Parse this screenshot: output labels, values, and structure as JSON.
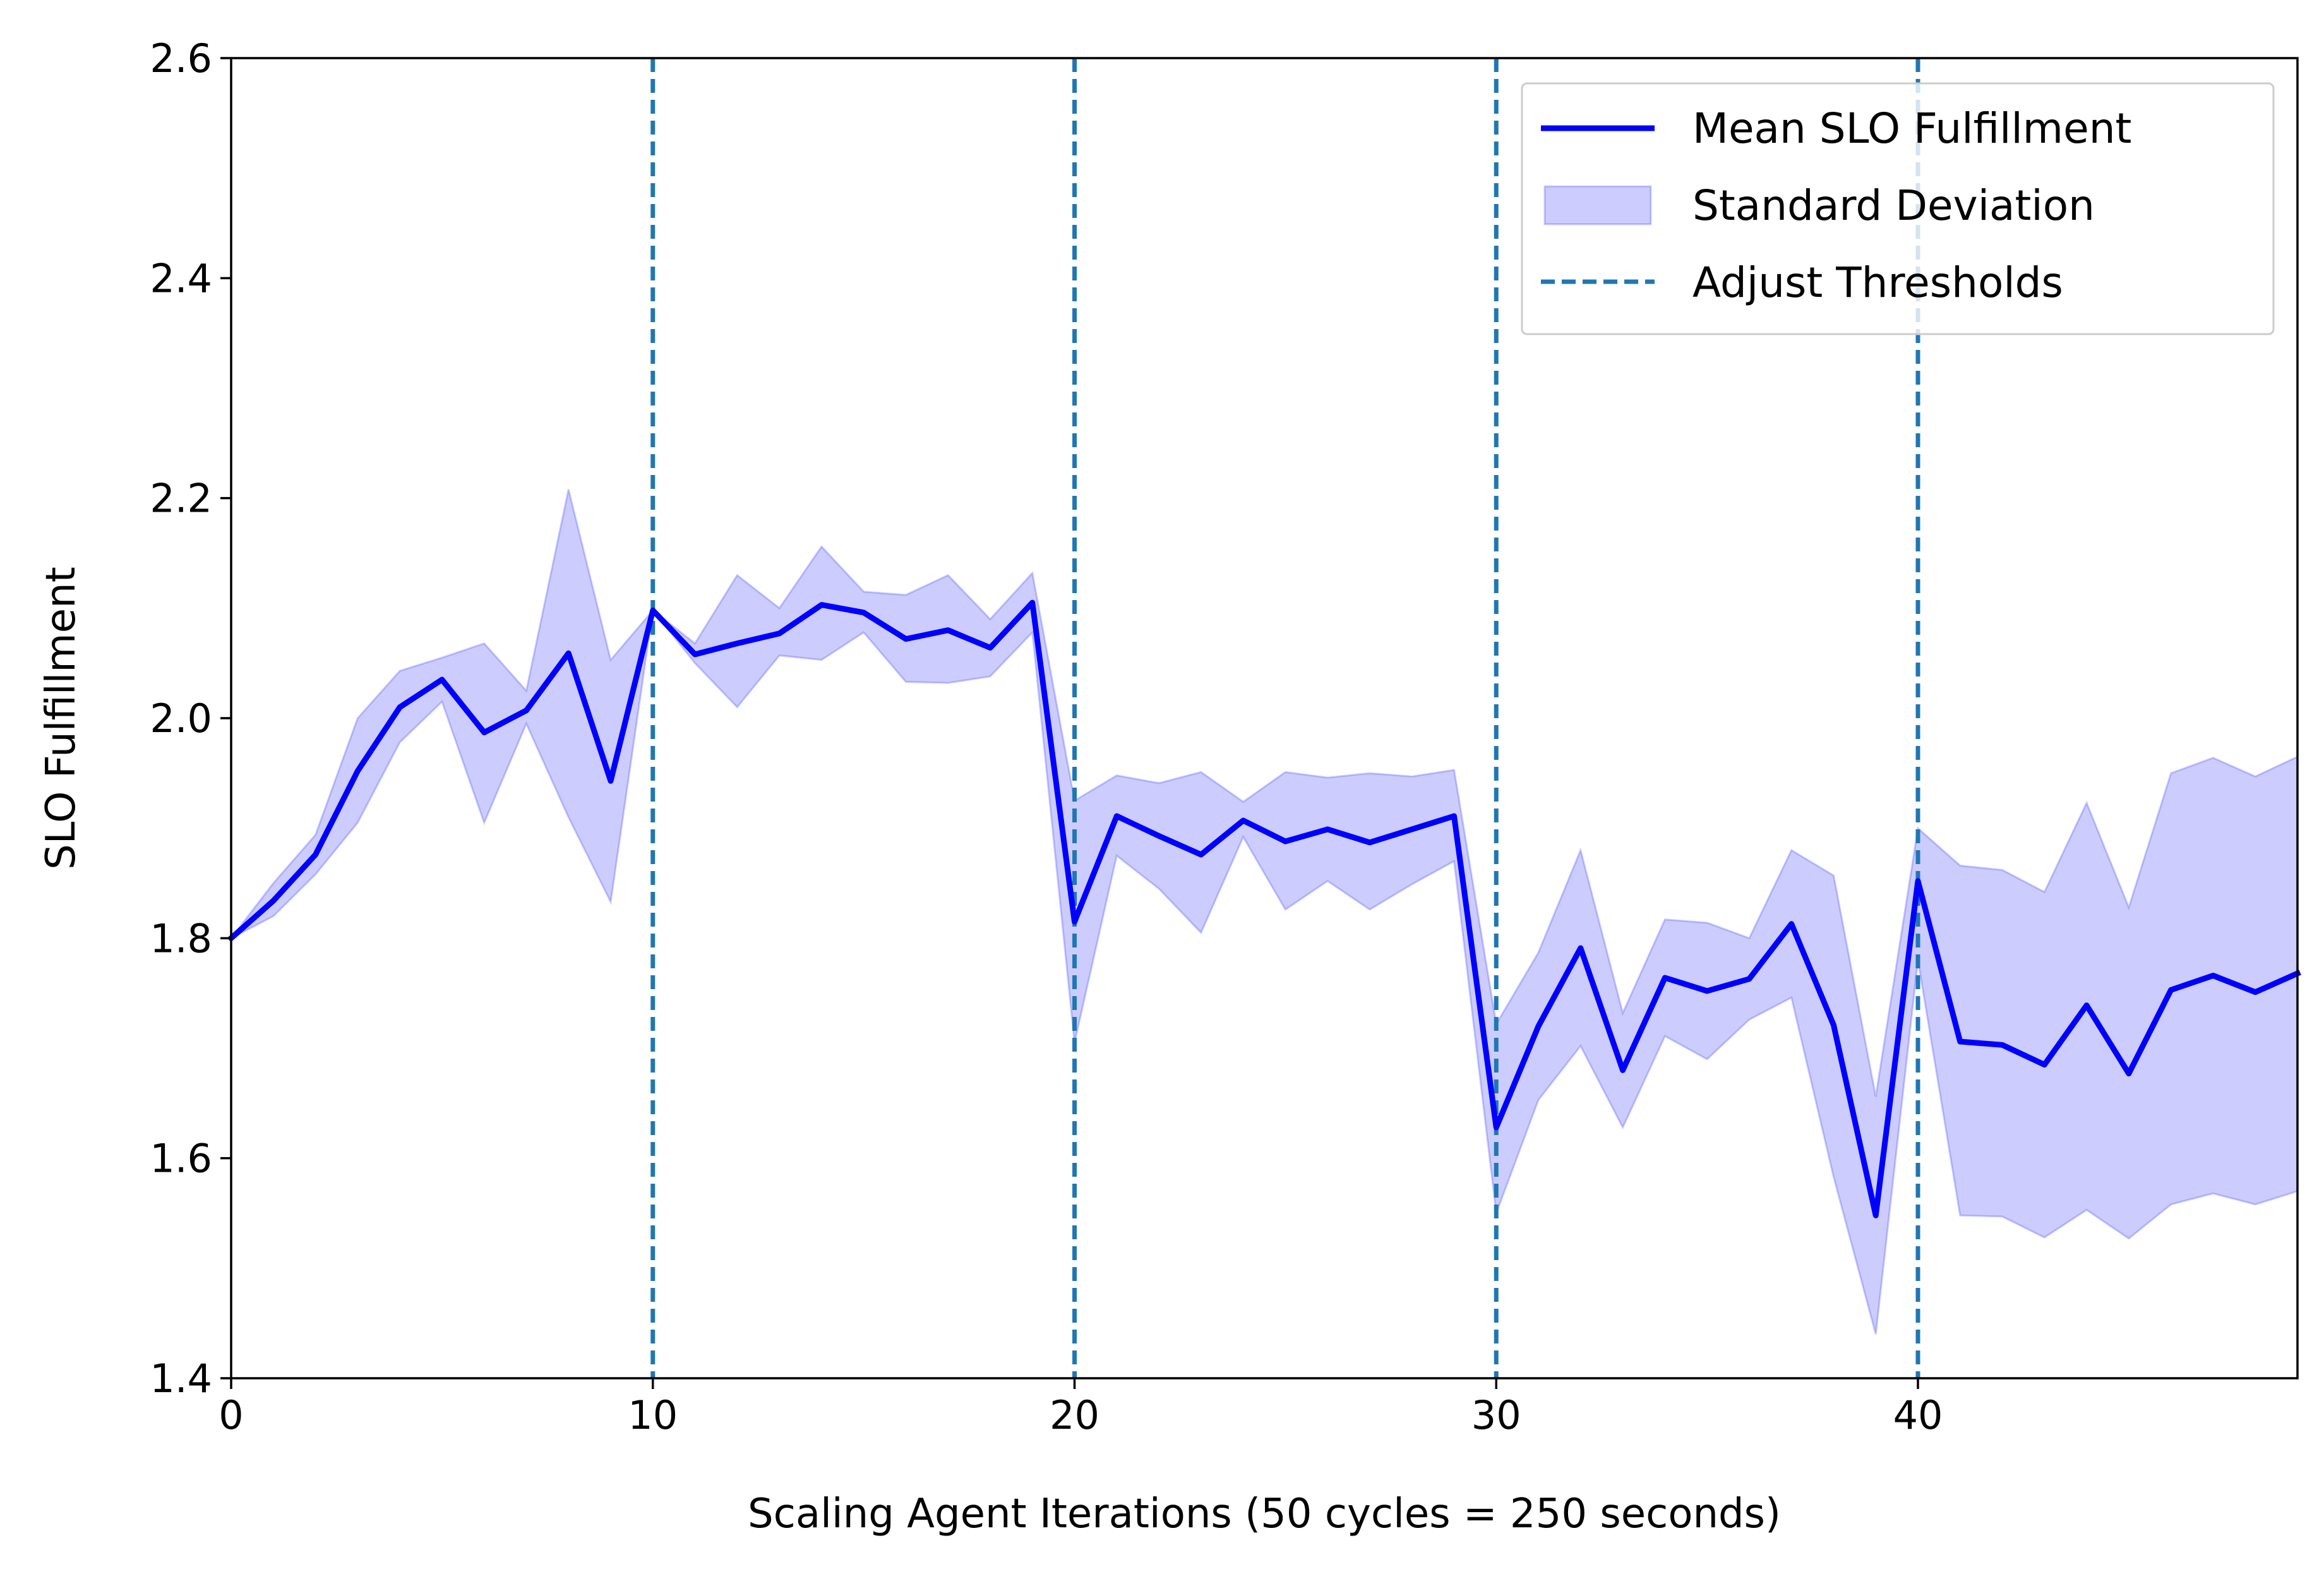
{
  "chart_data": {
    "type": "line",
    "xlabel": "Scaling Agent Iterations (50 cycles = 250 seconds)",
    "ylabel": "SLO Fulfillment",
    "xlim": [
      0,
      49
    ],
    "ylim": [
      1.4,
      2.6
    ],
    "xticks": [
      0,
      10,
      20,
      30,
      40
    ],
    "xtick_labels": [
      "0",
      "10",
      "20",
      "30",
      "40"
    ],
    "yticks": [
      1.4,
      1.6,
      1.8,
      2.0,
      2.2,
      2.4,
      2.6
    ],
    "ytick_labels": [
      "1.4",
      "1.6",
      "1.8",
      "2.0",
      "2.2",
      "2.4",
      "2.6"
    ],
    "grid": false,
    "legend_position": "top-right",
    "x": [
      0,
      1,
      2,
      3,
      4,
      5,
      6,
      7,
      8,
      9,
      10,
      11,
      12,
      13,
      14,
      15,
      16,
      17,
      18,
      19,
      20,
      21,
      22,
      23,
      24,
      25,
      26,
      27,
      28,
      29,
      30,
      31,
      32,
      33,
      34,
      35,
      36,
      37,
      38,
      39,
      40,
      41,
      42,
      43,
      44,
      45,
      46,
      47,
      48,
      49
    ],
    "series": [
      {
        "name": "Mean SLO Fulfillment",
        "color": "#0000ff",
        "values": [
          1.8,
          1.834,
          1.876,
          1.952,
          2.01,
          2.035,
          1.987,
          2.007,
          2.059,
          1.943,
          2.098,
          2.058,
          2.068,
          2.077,
          2.103,
          2.096,
          2.072,
          2.08,
          2.064,
          2.105,
          1.815,
          1.911,
          1.893,
          1.876,
          1.907,
          1.888,
          1.899,
          1.887,
          1.899,
          1.911,
          1.628,
          1.72,
          1.791,
          1.68,
          1.764,
          1.752,
          1.763,
          1.813,
          1.721,
          1.548,
          1.852,
          1.706,
          1.703,
          1.685,
          1.739,
          1.677,
          1.753,
          1.766,
          1.751,
          1.768
        ]
      }
    ],
    "band": {
      "name": "Standard Deviation",
      "color": "#0000ff",
      "lower": [
        1.8,
        1.82,
        1.858,
        1.905,
        1.978,
        2.015,
        1.905,
        1.995,
        1.91,
        1.833,
        2.098,
        2.05,
        2.01,
        2.057,
        2.053,
        2.078,
        2.033,
        2.032,
        2.038,
        2.078,
        1.705,
        1.875,
        1.845,
        1.805,
        1.892,
        1.826,
        1.852,
        1.826,
        1.849,
        1.87,
        1.55,
        1.653,
        1.702,
        1.628,
        1.711,
        1.69,
        1.726,
        1.746,
        1.583,
        1.44,
        1.78,
        1.548,
        1.547,
        1.528,
        1.553,
        1.527,
        1.558,
        1.568,
        1.558,
        1.57
      ],
      "upper": [
        1.8,
        1.85,
        1.894,
        2.0,
        2.043,
        2.055,
        2.068,
        2.025,
        2.208,
        2.053,
        2.098,
        2.068,
        2.13,
        2.1,
        2.156,
        2.115,
        2.112,
        2.13,
        2.09,
        2.132,
        1.925,
        1.948,
        1.941,
        1.951,
        1.924,
        1.951,
        1.946,
        1.95,
        1.947,
        1.953,
        1.722,
        1.787,
        1.88,
        1.732,
        1.817,
        1.814,
        1.8,
        1.88,
        1.857,
        1.656,
        1.9,
        1.866,
        1.862,
        1.842,
        1.923,
        1.828,
        1.95,
        1.964,
        1.947,
        1.965
      ]
    },
    "vlines": {
      "name": "Adjust Thresholds",
      "color": "#1f77b4",
      "x": [
        10,
        20,
        30,
        40
      ]
    }
  }
}
